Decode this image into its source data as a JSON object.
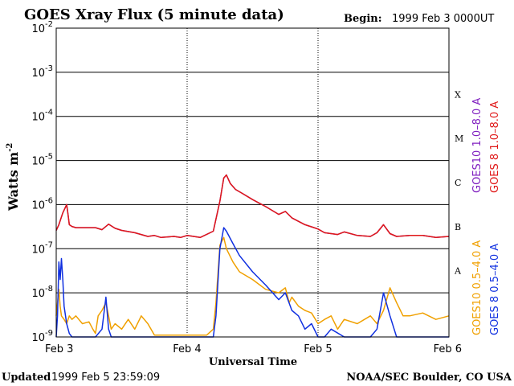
{
  "chart_data": {
    "type": "line",
    "title": "GOES Xray Flux (5 minute data)",
    "begin_label": "Begin:",
    "begin_value": "1999 Feb 3 0000UT",
    "xlabel": "Universal Time",
    "ylabel": "Watts m",
    "ylabel_sup": "-2",
    "yscale": "log",
    "ylim": [
      1e-09,
      0.01
    ],
    "xlim": [
      0,
      3
    ],
    "x_units": "days since 1999 Feb 3 00:00 UT",
    "xticks": [
      {
        "value": 0,
        "label": "Feb 3"
      },
      {
        "value": 1,
        "label": "Feb 4"
      },
      {
        "value": 2,
        "label": "Feb 5"
      },
      {
        "value": 3,
        "label": "Feb 6"
      }
    ],
    "yticks": [
      {
        "value": 1e-09,
        "base": "10",
        "exp": "-9"
      },
      {
        "value": 1e-08,
        "base": "10",
        "exp": "-8"
      },
      {
        "value": 1e-07,
        "base": "10",
        "exp": "-7"
      },
      {
        "value": 1e-06,
        "base": "10",
        "exp": "-6"
      },
      {
        "value": 1e-05,
        "base": "10",
        "exp": "-5"
      },
      {
        "value": 0.0001,
        "base": "10",
        "exp": "-4"
      },
      {
        "value": 0.001,
        "base": "10",
        "exp": "-3"
      },
      {
        "value": 0.01,
        "base": "10",
        "exp": "-2"
      }
    ],
    "flare_classes": [
      {
        "label": "A",
        "low": 1e-08,
        "high": 1e-07
      },
      {
        "label": "B",
        "low": 1e-07,
        "high": 1e-06
      },
      {
        "label": "C",
        "low": 1e-06,
        "high": 1e-05
      },
      {
        "label": "M",
        "low": 1e-05,
        "high": 0.0001
      },
      {
        "label": "X",
        "low": 0.0001,
        "high": 0.001
      }
    ],
    "series": [
      {
        "name": "GOES10 1.0–8.0 A",
        "color": "#8020c0",
        "x": [
          0,
          0.02,
          0.05,
          0.08,
          0.09,
          0.1,
          0.12,
          0.15,
          0.2,
          0.3,
          0.35,
          0.4,
          0.45,
          0.5,
          0.6,
          0.7,
          0.75,
          0.8,
          0.9,
          0.95,
          1.0,
          1.1,
          1.2,
          1.25,
          1.28,
          1.3,
          1.33,
          1.37,
          1.42,
          1.5,
          1.6,
          1.7,
          1.75,
          1.8,
          1.9,
          1.97,
          2.0,
          2.05,
          2.15,
          2.2,
          2.3,
          2.4,
          2.45,
          2.5,
          2.55,
          2.6,
          2.7,
          2.8,
          2.9,
          3.0
        ],
        "y": [
          2.6e-07,
          3.5e-07,
          6.5e-07,
          1e-06,
          6e-07,
          3.5e-07,
          3.2e-07,
          3e-07,
          3e-07,
          3e-07,
          2.7e-07,
          3.6e-07,
          2.9e-07,
          2.6e-07,
          2.3e-07,
          1.9e-07,
          2e-07,
          1.8e-07,
          1.9e-07,
          1.8e-07,
          2e-07,
          1.8e-07,
          2.5e-07,
          1.2e-06,
          4e-06,
          4.7e-06,
          3e-06,
          2.2e-06,
          1.8e-06,
          1.3e-06,
          9e-07,
          6e-07,
          7e-07,
          5e-07,
          3.5e-07,
          3e-07,
          2.8e-07,
          2.3e-07,
          2.1e-07,
          2.4e-07,
          2e-07,
          1.9e-07,
          2.3e-07,
          3.5e-07,
          2.2e-07,
          1.9e-07,
          2e-07,
          2e-07,
          1.8e-07,
          1.9e-07
        ]
      },
      {
        "name": "GOES 8 1.0–8.0 A",
        "color": "#e01818",
        "x": [
          0,
          0.02,
          0.05,
          0.08,
          0.09,
          0.1,
          0.12,
          0.15,
          0.2,
          0.3,
          0.35,
          0.4,
          0.45,
          0.5,
          0.6,
          0.7,
          0.75,
          0.8,
          0.9,
          0.95,
          1.0,
          1.1,
          1.2,
          1.25,
          1.28,
          1.3,
          1.33,
          1.37,
          1.42,
          1.5,
          1.6,
          1.7,
          1.75,
          1.8,
          1.9,
          1.97,
          2.0,
          2.05,
          2.15,
          2.2,
          2.3,
          2.4,
          2.45,
          2.5,
          2.55,
          2.6,
          2.7,
          2.8,
          2.9,
          3.0
        ],
        "y": [
          2.6e-07,
          3.5e-07,
          6.5e-07,
          1e-06,
          6e-07,
          3.5e-07,
          3.2e-07,
          3e-07,
          3e-07,
          3e-07,
          2.7e-07,
          3.6e-07,
          2.9e-07,
          2.6e-07,
          2.3e-07,
          1.9e-07,
          2e-07,
          1.8e-07,
          1.9e-07,
          1.8e-07,
          2e-07,
          1.8e-07,
          2.5e-07,
          1.2e-06,
          4e-06,
          4.7e-06,
          3e-06,
          2.2e-06,
          1.8e-06,
          1.3e-06,
          9e-07,
          6e-07,
          7e-07,
          5e-07,
          3.5e-07,
          3e-07,
          2.8e-07,
          2.3e-07,
          2.1e-07,
          2.4e-07,
          2e-07,
          1.9e-07,
          2.3e-07,
          3.5e-07,
          2.2e-07,
          1.9e-07,
          2e-07,
          2e-07,
          1.8e-07,
          1.9e-07
        ]
      },
      {
        "name": "GOES10 0.5–4.0 A",
        "color": "#f0a000",
        "x": [
          0,
          0.01,
          0.02,
          0.03,
          0.04,
          0.06,
          0.08,
          0.1,
          0.12,
          0.15,
          0.2,
          0.25,
          0.28,
          0.3,
          0.32,
          0.35,
          0.38,
          0.4,
          0.42,
          0.45,
          0.5,
          0.55,
          0.6,
          0.65,
          0.7,
          0.75,
          0.8,
          0.85,
          0.9,
          0.95,
          1.0,
          1.1,
          1.15,
          1.2,
          1.22,
          1.25,
          1.28,
          1.3,
          1.35,
          1.4,
          1.5,
          1.6,
          1.7,
          1.75,
          1.78,
          1.8,
          1.85,
          1.9,
          1.95,
          2.0,
          2.05,
          2.1,
          2.15,
          2.2,
          2.3,
          2.4,
          2.45,
          2.5,
          2.55,
          2.6,
          2.65,
          2.7,
          2.8,
          2.9,
          3.0
        ],
        "y": [
          3e-09,
          6e-09,
          1.2e-08,
          5e-09,
          3e-09,
          2.5e-09,
          2e-09,
          3e-09,
          2.5e-09,
          3e-09,
          2e-09,
          2.2e-09,
          1.5e-09,
          1.2e-09,
          3e-09,
          4e-09,
          6e-09,
          3e-09,
          1.5e-09,
          2e-09,
          1.5e-09,
          2.5e-09,
          1.5e-09,
          3e-09,
          2e-09,
          1.1e-09,
          1.1e-09,
          1.1e-09,
          1.1e-09,
          1.1e-09,
          1.1e-09,
          1.1e-09,
          1.1e-09,
          1.5e-09,
          6e-09,
          1.2e-07,
          1.8e-07,
          1e-07,
          5e-08,
          3e-08,
          2e-08,
          1.2e-08,
          1e-08,
          1.3e-08,
          6e-09,
          8e-09,
          5e-09,
          4e-09,
          3.5e-09,
          2e-09,
          2.5e-09,
          3e-09,
          1.5e-09,
          2.5e-09,
          2e-09,
          3e-09,
          2e-09,
          4e-09,
          1.3e-08,
          6e-09,
          3e-09,
          3e-09,
          3.5e-09,
          2.5e-09,
          3e-09
        ]
      },
      {
        "name": "GOES 8 0.5–4.0 A",
        "color": "#1030e0",
        "x": [
          0,
          0.01,
          0.02,
          0.03,
          0.04,
          0.05,
          0.06,
          0.08,
          0.1,
          0.12,
          0.15,
          0.2,
          0.3,
          0.35,
          0.38,
          0.4,
          0.42,
          0.45,
          0.5,
          0.6,
          0.7,
          0.8,
          0.9,
          1.0,
          1.1,
          1.15,
          1.2,
          1.22,
          1.25,
          1.28,
          1.3,
          1.35,
          1.4,
          1.5,
          1.6,
          1.7,
          1.75,
          1.8,
          1.85,
          1.9,
          1.95,
          2.0,
          2.05,
          2.1,
          2.2,
          2.3,
          2.4,
          2.45,
          2.5,
          2.55,
          2.6,
          2.7,
          2.8,
          2.9,
          3.0
        ],
        "y": [
          1e-09,
          3e-09,
          5e-08,
          2e-08,
          6e-08,
          2e-08,
          5e-09,
          2e-09,
          1.2e-09,
          1e-09,
          1e-09,
          1e-09,
          1e-09,
          1.5e-09,
          8e-09,
          1.5e-09,
          1e-09,
          1e-09,
          1e-09,
          1e-09,
          1e-09,
          1e-09,
          1e-09,
          1e-09,
          1e-09,
          1e-09,
          1e-09,
          3e-09,
          1e-07,
          3e-07,
          2.5e-07,
          1.3e-07,
          7e-08,
          3e-08,
          1.5e-08,
          7e-09,
          1e-08,
          4e-09,
          3e-09,
          1.5e-09,
          2e-09,
          1e-09,
          1e-09,
          1.5e-09,
          1e-09,
          1e-09,
          1e-09,
          1.5e-09,
          1e-08,
          3e-09,
          1e-09,
          1e-09,
          1e-09,
          1e-09,
          1e-09
        ]
      }
    ]
  },
  "footer": {
    "updated_label": "Updated",
    "updated_value": "1999 Feb  5 23:59:09",
    "credit": "NOAA/SEC Boulder, CO USA"
  }
}
